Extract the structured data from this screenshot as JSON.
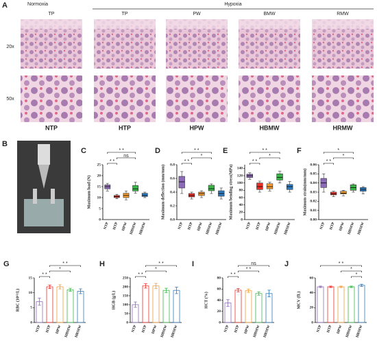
{
  "panel_a": {
    "label": "A",
    "normoxia": "Normoxia",
    "hypoxia": "Hypoxia",
    "columns": [
      "TP",
      "TP",
      "PW",
      "BMW",
      "RMW"
    ],
    "rows": [
      "20x",
      "50x"
    ],
    "groups": [
      "NTP",
      "HTP",
      "HPW",
      "HBMW",
      "HRMW"
    ]
  },
  "panel_b": {
    "label": "B"
  },
  "chart_data": [
    {
      "type": "box",
      "label": "C",
      "ylabel": "Maximum load (N)",
      "categories": [
        "NTP",
        "HTP",
        "HPW",
        "HBMW",
        "HRMW"
      ],
      "colors": [
        "#8e6bb8",
        "#e8302a",
        "#f39c34",
        "#3cb54a",
        "#2f7bbf"
      ],
      "boxes": [
        {
          "min": 13,
          "q1": 14,
          "median": 15,
          "q3": 15.8,
          "max": 16.5
        },
        {
          "min": 9.5,
          "q1": 10,
          "median": 10.5,
          "q3": 11,
          "max": 11.5
        },
        {
          "min": 9,
          "q1": 10,
          "median": 11,
          "q3": 12,
          "max": 13
        },
        {
          "min": 12,
          "q1": 13,
          "median": 14,
          "q3": 15.5,
          "max": 17
        },
        {
          "min": 10,
          "q1": 10.5,
          "median": 11,
          "q3": 12,
          "max": 12.5
        }
      ],
      "ylim": [
        0,
        25
      ],
      "yticks": [
        0,
        5,
        10,
        15,
        20,
        25
      ],
      "comparisons": [
        {
          "from": 0,
          "to": 1,
          "label": "* *"
        },
        {
          "from": 1,
          "to": 3,
          "label": "ns"
        },
        {
          "from": 0,
          "to": 3,
          "label": "* *"
        }
      ]
    },
    {
      "type": "box",
      "label": "D",
      "ylabel": "Maximum deflection (mm/mm)",
      "categories": [
        "NTP",
        "HTP",
        "HPW",
        "HBMW",
        "HRMW"
      ],
      "colors": [
        "#8e6bb8",
        "#e8302a",
        "#f39c34",
        "#3cb54a",
        "#2f7bbf"
      ],
      "boxes": [
        {
          "min": 0.38,
          "q1": 0.46,
          "median": 0.55,
          "q3": 0.63,
          "max": 0.7
        },
        {
          "min": 0.3,
          "q1": 0.33,
          "median": 0.35,
          "q3": 0.38,
          "max": 0.4
        },
        {
          "min": 0.32,
          "q1": 0.35,
          "median": 0.38,
          "q3": 0.4,
          "max": 0.42
        },
        {
          "min": 0.38,
          "q1": 0.42,
          "median": 0.45,
          "q3": 0.5,
          "max": 0.52
        },
        {
          "min": 0.3,
          "q1": 0.34,
          "median": 0.38,
          "q3": 0.42,
          "max": 0.46
        }
      ],
      "ylim": [
        0,
        0.8
      ],
      "yticks": [
        {
          "value": 0,
          "label": "0.0"
        },
        {
          "value": 0.2,
          "label": "0.2"
        },
        {
          "value": 0.4,
          "label": "0.4"
        },
        {
          "value": 0.6,
          "label": "0.6"
        },
        {
          "value": 0.8,
          "label": "0.8"
        }
      ],
      "comparisons": [
        {
          "from": 0,
          "to": 1,
          "label": "* *"
        },
        {
          "from": 1,
          "to": 3,
          "label": "*"
        },
        {
          "from": 0,
          "to": 3,
          "label": "* *"
        }
      ]
    },
    {
      "type": "box",
      "label": "E",
      "ylabel": "Maximum bending stress(MPa)",
      "categories": [
        "NTP",
        "HTP",
        "HPW",
        "HBMW",
        "HRMW"
      ],
      "colors": [
        "#8e6bb8",
        "#e8302a",
        "#f39c34",
        "#3cb54a",
        "#2f7bbf"
      ],
      "boxes": [
        {
          "min": 110,
          "q1": 115,
          "median": 120,
          "q3": 124,
          "max": 128
        },
        {
          "min": 75,
          "q1": 82,
          "median": 90,
          "q3": 100,
          "max": 105
        },
        {
          "min": 78,
          "q1": 84,
          "median": 90,
          "q3": 98,
          "max": 102
        },
        {
          "min": 100,
          "q1": 108,
          "median": 115,
          "q3": 125,
          "max": 132
        },
        {
          "min": 75,
          "q1": 82,
          "median": 90,
          "q3": 96,
          "max": 104
        }
      ],
      "ylim": [
        0,
        150
      ],
      "yticks": [
        0,
        20,
        40,
        60,
        80,
        100,
        120,
        140
      ],
      "comparisons": [
        {
          "from": 0,
          "to": 1,
          "label": "* *"
        },
        {
          "from": 1,
          "to": 3,
          "label": "*"
        },
        {
          "from": 0,
          "to": 3,
          "label": "* *"
        }
      ]
    },
    {
      "type": "box",
      "label": "F",
      "ylabel": "Maximum strain(mm/mm)",
      "categories": [
        "NTP",
        "HTP",
        "HPW",
        "HBMW",
        "HRMW"
      ],
      "colors": [
        "#8e6bb8",
        "#e8302a",
        "#f39c34",
        "#3cb54a",
        "#2f7bbf"
      ],
      "boxes": [
        {
          "min": 0.03,
          "q1": 0.035,
          "median": 0.04,
          "q3": 0.045,
          "max": 0.05
        },
        {
          "min": 0.025,
          "q1": 0.027,
          "median": 0.028,
          "q3": 0.03,
          "max": 0.031
        },
        {
          "min": 0.026,
          "q1": 0.028,
          "median": 0.029,
          "q3": 0.031,
          "max": 0.032
        },
        {
          "min": 0.03,
          "q1": 0.032,
          "median": 0.035,
          "q3": 0.038,
          "max": 0.039
        },
        {
          "min": 0.028,
          "q1": 0.031,
          "median": 0.033,
          "q3": 0.035,
          "max": 0.036
        }
      ],
      "ylim": [
        0,
        0.06
      ],
      "yticks": [
        {
          "value": 0,
          "label": "0.00"
        },
        {
          "value": 0.01,
          "label": "0.01"
        },
        {
          "value": 0.02,
          "label": "0.02"
        },
        {
          "value": 0.03,
          "label": "0.03"
        },
        {
          "value": 0.04,
          "label": "0.04"
        },
        {
          "value": 0.05,
          "label": "0.05"
        },
        {
          "value": 0.06,
          "label": "0.06"
        }
      ],
      "comparisons": [
        {
          "from": 0,
          "to": 1,
          "label": "* *"
        },
        {
          "from": 1,
          "to": 3,
          "label": "*"
        },
        {
          "from": 0,
          "to": 3,
          "label": "*"
        }
      ]
    },
    {
      "type": "bar",
      "label": "G",
      "ylabel": "RBC (10¹²/L)",
      "categories": [
        "NTP",
        "HTP",
        "HPW",
        "HBMW",
        "HRMW"
      ],
      "colors": [
        "#8e6bb8",
        "#e8302a",
        "#f39c34",
        "#3cb54a",
        "#2f7bbf"
      ],
      "values": [
        7,
        12,
        12,
        11,
        10.5
      ],
      "errors": [
        1.2,
        0.6,
        0.7,
        0.5,
        0.8
      ],
      "ylim": [
        0,
        15
      ],
      "yticks": [
        0,
        5,
        10,
        15
      ],
      "comparisons": [
        {
          "from": 0,
          "to": 1,
          "label": "* *"
        },
        {
          "from": 1,
          "to": 3,
          "label": "*"
        },
        {
          "from": 1,
          "to": 4,
          "label": "* *"
        }
      ]
    },
    {
      "type": "bar",
      "label": "H",
      "ylabel": "HGB (g/L)",
      "categories": [
        "NTP",
        "HTP",
        "HPW",
        "HBMW",
        "HRMW"
      ],
      "colors": [
        "#8e6bb8",
        "#e8302a",
        "#f39c34",
        "#3cb54a",
        "#2f7bbf"
      ],
      "values": [
        100,
        205,
        205,
        180,
        180
      ],
      "errors": [
        15,
        12,
        14,
        12,
        18
      ],
      "ylim": [
        0,
        250
      ],
      "yticks": [
        0,
        50,
        100,
        150,
        200,
        250
      ],
      "comparisons": [
        {
          "from": 0,
          "to": 1,
          "label": "* *"
        },
        {
          "from": 1,
          "to": 3,
          "label": "*"
        },
        {
          "from": 1,
          "to": 4,
          "label": "* *"
        }
      ]
    },
    {
      "type": "bar",
      "label": "I",
      "ylabel": "HCT (%)",
      "categories": [
        "NTP",
        "HTP",
        "HPW",
        "HBMW",
        "HRMW"
      ],
      "colors": [
        "#8e6bb8",
        "#e8302a",
        "#f39c34",
        "#3cb54a",
        "#2f7bbf"
      ],
      "values": [
        35,
        58,
        57,
        52,
        52
      ],
      "errors": [
        6,
        3,
        3,
        3,
        6
      ],
      "ylim": [
        0,
        80
      ],
      "yticks": [
        0,
        20,
        40,
        60,
        80
      ],
      "comparisons": [
        {
          "from": 0,
          "to": 1,
          "label": "* *"
        },
        {
          "from": 1,
          "to": 3,
          "label": "* *"
        },
        {
          "from": 1,
          "to": 4,
          "label": "ns"
        }
      ]
    },
    {
      "type": "bar",
      "label": "J",
      "ylabel": "MCV (fL)",
      "categories": [
        "NTP",
        "HTP",
        "HPW",
        "HBMW",
        "HRMW"
      ],
      "colors": [
        "#8e6bb8",
        "#e8302a",
        "#f39c34",
        "#3cb54a",
        "#2f7bbf"
      ],
      "values": [
        48,
        48,
        48,
        48,
        50
      ],
      "errors": [
        1,
        1,
        1,
        1,
        1.5
      ],
      "ylim": [
        0,
        60
      ],
      "yticks": [
        0,
        20,
        40,
        60
      ],
      "comparisons": [
        {
          "from": 3,
          "to": 4,
          "label": "*"
        },
        {
          "from": 2,
          "to": 4,
          "label": "*"
        },
        {
          "from": 0,
          "to": 4,
          "label": "* *"
        }
      ]
    }
  ]
}
